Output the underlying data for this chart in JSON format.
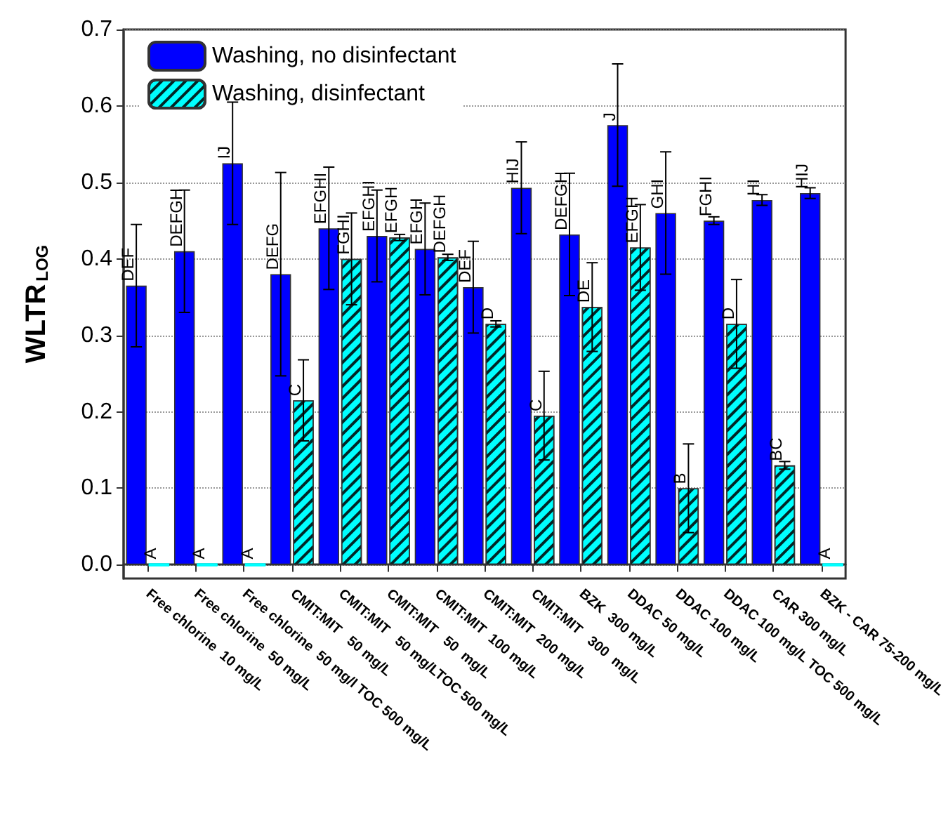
{
  "chart_data": {
    "type": "bar",
    "ylabel": "WLTR$_{LOG}$",
    "categories": [
      "Free chlorine  10 mg/L",
      "Free chlorine  50 mg/L",
      "Free chlorine  50 mg/l TOC 500 mg/L",
      "CMIT:MIT   50 mg/L",
      "CMIT:MIT   50 mg/LTOC 500 mg/L",
      "CMIT:MIT   50  mg/L",
      "CMIT:MIT  100 mg/L",
      "CMIT:MIT  200 mg/L",
      "CMIT:MIT   300  mg/L",
      "BZK  300 mg/L",
      "DDAC 50 mg/L",
      "DDAC 100 mg/L",
      "DDAC 100 mg/L TOC 500 mg/L",
      "CAR 300 mg/L",
      "BZK - CAR 75-200 mg/L"
    ],
    "series": [
      {
        "name": "Washing, no disinfectant",
        "color": "#0000ff",
        "values": [
          0.365,
          0.41,
          0.525,
          0.38,
          0.44,
          0.43,
          0.413,
          0.363,
          0.493,
          0.432,
          0.575,
          0.46,
          0.45,
          0.477,
          0.486
        ],
        "errors": [
          0.08,
          0.08,
          0.08,
          0.133,
          0.08,
          0.06,
          0.06,
          0.06,
          0.06,
          0.08,
          0.08,
          0.08,
          0.005,
          0.007,
          0.007
        ],
        "value_labels": [
          "DEF",
          "DEFGH",
          "IJ",
          "DEFG",
          "EFGHI",
          "EFGHI",
          "EFGH",
          "DEF",
          "HIJ",
          "DEFGH",
          "J",
          "GHI",
          "FGHI",
          "HI",
          "HIJ"
        ]
      },
      {
        "name": "Washing, disinfectant",
        "color": "#00ffff",
        "values": [
          0,
          0,
          0,
          0.215,
          0.4,
          0.428,
          0.402,
          0.315,
          0.195,
          0.337,
          0.415,
          0.1,
          0.315,
          0.13,
          0
        ],
        "errors": [
          null,
          null,
          null,
          0.053,
          0.06,
          0.004,
          0.004,
          0.004,
          0.058,
          0.058,
          0.056,
          0.058,
          0.058,
          0.005,
          null
        ],
        "value_labels": [
          "A",
          "A",
          "A",
          "C",
          "FGHI",
          "EFGH",
          "DEFGH",
          "D",
          "C",
          "DE",
          "EFGH",
          "B",
          "D",
          "BC",
          "A"
        ]
      }
    ],
    "ylim": [
      -0.018,
      0.7
    ],
    "yticks": [
      {
        "value": 0,
        "label": "0.0"
      },
      {
        "value": 0.1,
        "label": "0.1"
      },
      {
        "value": 0.2,
        "label": "0.2"
      },
      {
        "value": 0.3,
        "label": "0.3"
      },
      {
        "value": 0.4,
        "label": "0.4"
      },
      {
        "value": 0.5,
        "label": "0.5"
      },
      {
        "value": 0.6,
        "label": "0.6"
      },
      {
        "value": 0.7,
        "label": "0.7"
      }
    ],
    "grid": "y",
    "legend": "top left"
  }
}
